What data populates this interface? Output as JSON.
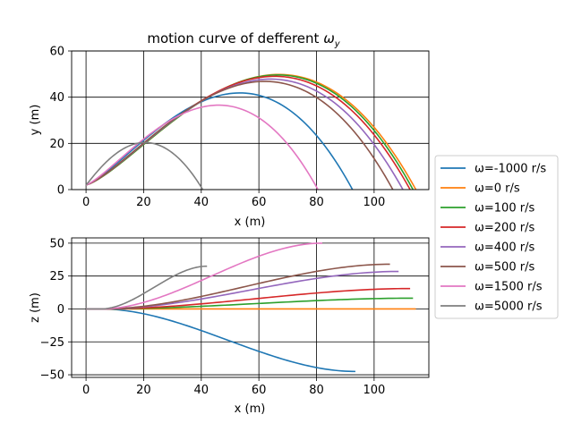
{
  "chart_data": [
    {
      "type": "line",
      "title": "motion curve of defferent ",
      "title_math": "ω",
      "title_sub": "y",
      "xlabel": "x (m)",
      "ylabel": "y (m)",
      "xlim": [
        -5,
        119
      ],
      "ylim": [
        0,
        60
      ],
      "xticks": [
        "0",
        "20",
        "40",
        "60",
        "80",
        "100"
      ],
      "yticks": [
        "0",
        "20",
        "40",
        "60"
      ],
      "grid": true,
      "series": [
        {
          "name": "ω=-1000 r/s",
          "color": "#1f77b4",
          "range": 92.5,
          "peak": 41,
          "peak_x": 53.9
        },
        {
          "name": "ω=0 r/s",
          "color": "#ff7f0e",
          "range": 114.5,
          "peak": 49,
          "peak_x": 67.5
        },
        {
          "name": "ω=100 r/s",
          "color": "#2ca02c",
          "range": 113.5,
          "peak": 48.8,
          "peak_x": 67
        },
        {
          "name": "ω=200 r/s",
          "color": "#d62728",
          "range": 112.5,
          "peak": 48.2,
          "peak_x": 66
        },
        {
          "name": "ω=400 r/s",
          "color": "#9467bd",
          "range": 110,
          "peak": 47,
          "peak_x": 64.5
        },
        {
          "name": "ω=500 r/s",
          "color": "#8c564b",
          "range": 106.5,
          "peak": 46,
          "peak_x": 62.5
        },
        {
          "name": "ω=1500 r/s",
          "color": "#e377c2",
          "range": 80.5,
          "peak": 35.7,
          "peak_x": 46.5
        },
        {
          "name": "ω=5000 r/s",
          "color": "#7f7f7f",
          "range": 40.5,
          "peak": 19.4,
          "peak_x": 21
        }
      ]
    },
    {
      "type": "line",
      "title": "",
      "xlabel": "x (m)",
      "ylabel": "z (m)",
      "xlim": [
        -5,
        119
      ],
      "ylim": [
        -52,
        54
      ],
      "xticks": [
        "0",
        "20",
        "40",
        "60",
        "80",
        "100"
      ],
      "yticks": [
        "−50",
        "−25",
        "0",
        "25",
        "50"
      ],
      "grid": true,
      "series": [
        {
          "name": "ω=-1000 r/s",
          "color": "#1f77b4",
          "range": 93.5,
          "final_z": -47.5
        },
        {
          "name": "ω=0 r/s",
          "color": "#ff7f0e",
          "range": 114.5,
          "final_z": 0
        },
        {
          "name": "ω=100 r/s",
          "color": "#2ca02c",
          "range": 113.5,
          "final_z": 8.2
        },
        {
          "name": "ω=200 r/s",
          "color": "#d62728",
          "range": 112.5,
          "final_z": 15.5
        },
        {
          "name": "ω=400 r/s",
          "color": "#9467bd",
          "range": 108.5,
          "final_z": 28.5
        },
        {
          "name": "ω=500 r/s",
          "color": "#8c564b",
          "range": 105.5,
          "final_z": 34
        },
        {
          "name": "ω=1500 r/s",
          "color": "#e377c2",
          "range": 82,
          "final_z": 50
        },
        {
          "name": "ω=5000 r/s",
          "color": "#7f7f7f",
          "range": 42,
          "final_z": 32.5
        }
      ]
    }
  ]
}
